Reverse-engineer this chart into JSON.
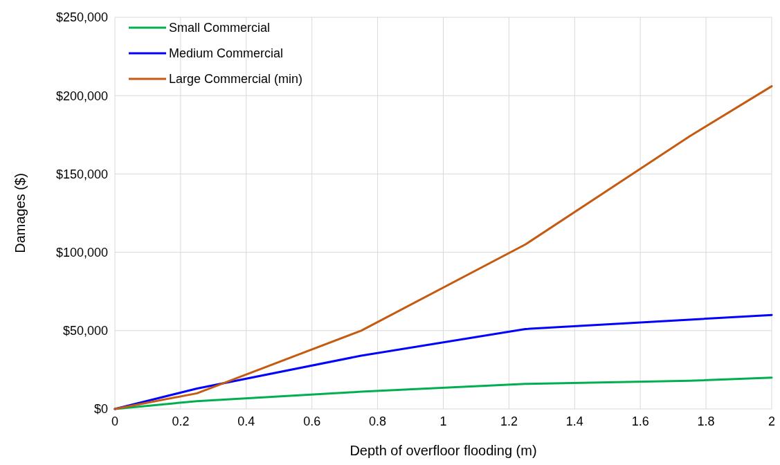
{
  "chart_data": {
    "type": "line",
    "xlabel": "Depth of overfloor flooding (m)",
    "ylabel": "Damages ($)",
    "x": [
      0,
      0.25,
      0.75,
      1.25,
      1.75,
      2
    ],
    "series": [
      {
        "name": "Small Commercial",
        "color": "#00b050",
        "values": [
          0,
          5000,
          11000,
          16000,
          18000,
          20000
        ]
      },
      {
        "name": "Medium Commercial",
        "color": "#0000ff",
        "values": [
          0,
          13000,
          34000,
          51000,
          57000,
          60000
        ]
      },
      {
        "name": "Large Commercial (min)",
        "color": "#c55a11",
        "values": [
          0,
          10000,
          50000,
          105000,
          174000,
          206000
        ]
      }
    ],
    "xlim": [
      0,
      2
    ],
    "xticks": [
      0,
      0.2,
      0.4,
      0.6,
      0.8,
      1,
      1.2,
      1.4,
      1.6,
      1.8,
      2
    ],
    "ylim": [
      0,
      250000
    ],
    "yticks": [
      {
        "value": 0,
        "label": "$0"
      },
      {
        "value": 50000,
        "label": "$50,000"
      },
      {
        "value": 100000,
        "label": "$100,000"
      },
      {
        "value": 150000,
        "label": "$150,000"
      },
      {
        "value": 200000,
        "label": "$200,000"
      },
      {
        "value": 250000,
        "label": "$250,000"
      }
    ],
    "grid": true,
    "legend": "top left",
    "marker": "none",
    "line_style": "solid"
  }
}
